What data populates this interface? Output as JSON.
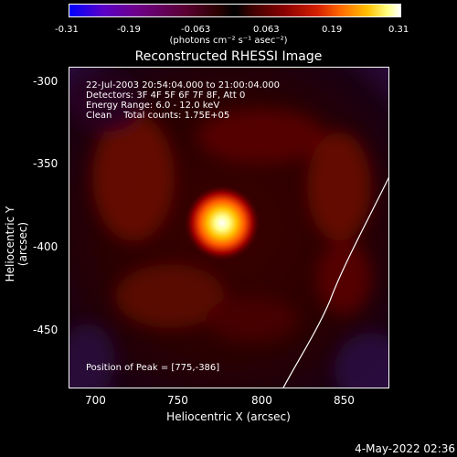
{
  "colorbar": {
    "ticks": [
      "-0.31",
      "-0.19",
      "-0.063",
      "0.063",
      "0.19",
      "0.31"
    ],
    "units": "(photons cm⁻² s⁻¹ asec⁻²)"
  },
  "title": "Reconstructed RHESSI Image",
  "info": {
    "time": "22-Jul-2003 20:54:04.000 to 21:00:04.000",
    "detectors": "Detectors: 3F 4F 5F 6F 7F 8F, Att 0",
    "energy": "Energy Range: 6.0 - 12.0 keV",
    "clean": "Clean    Total counts: 1.75E+05",
    "peak": "Position of Peak = [775,-386]"
  },
  "axes": {
    "xlabel": "Heliocentric X (arcsec)",
    "ylabel": "Heliocentric Y (arcsec)",
    "xticks": [
      "700",
      "750",
      "800",
      "850"
    ],
    "yticks": [
      "-300",
      "-350",
      "-400",
      "-450"
    ]
  },
  "footer": {
    "date": "4-May-2022 02:36"
  }
}
